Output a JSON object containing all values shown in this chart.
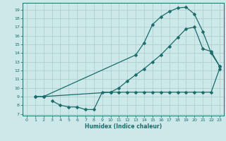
{
  "xlabel": "Humidex (Indice chaleur)",
  "bg_color": "#cde8e8",
  "line_color": "#1a6b6b",
  "grid_color": "#aacccc",
  "xlim": [
    -0.5,
    23.5
  ],
  "ylim": [
    6.8,
    19.8
  ],
  "yticks": [
    7,
    8,
    9,
    10,
    11,
    12,
    13,
    14,
    15,
    16,
    17,
    18,
    19
  ],
  "xticks": [
    0,
    1,
    2,
    3,
    4,
    5,
    6,
    7,
    8,
    9,
    10,
    11,
    12,
    13,
    14,
    15,
    16,
    17,
    18,
    19,
    20,
    21,
    22,
    23
  ],
  "series1_x": [
    1,
    2,
    13,
    14,
    15,
    16,
    17,
    18,
    19,
    20,
    21,
    22,
    23
  ],
  "series1_y": [
    9,
    9,
    13.8,
    15.2,
    17.3,
    18.2,
    18.8,
    19.2,
    19.3,
    18.5,
    16.5,
    14.0,
    12.5
  ],
  "series2_x": [
    1,
    2,
    10,
    11,
    12,
    13,
    14,
    15,
    16,
    17,
    18,
    19,
    20,
    21,
    22,
    23
  ],
  "series2_y": [
    9,
    9,
    9.5,
    10.0,
    10.8,
    11.5,
    12.2,
    13.0,
    13.8,
    14.8,
    15.8,
    16.8,
    17.0,
    14.5,
    14.2,
    12.5
  ],
  "series3_x": [
    3,
    4,
    5,
    6,
    7,
    8,
    9,
    10,
    11,
    12,
    13,
    14,
    15,
    16,
    17,
    18,
    19,
    20,
    21,
    22,
    23
  ],
  "series3_y": [
    8.5,
    8.0,
    7.8,
    7.8,
    7.5,
    7.5,
    9.5,
    9.5,
    9.5,
    9.5,
    9.5,
    9.5,
    9.5,
    9.5,
    9.5,
    9.5,
    9.5,
    9.5,
    9.5,
    9.5,
    12.2
  ]
}
